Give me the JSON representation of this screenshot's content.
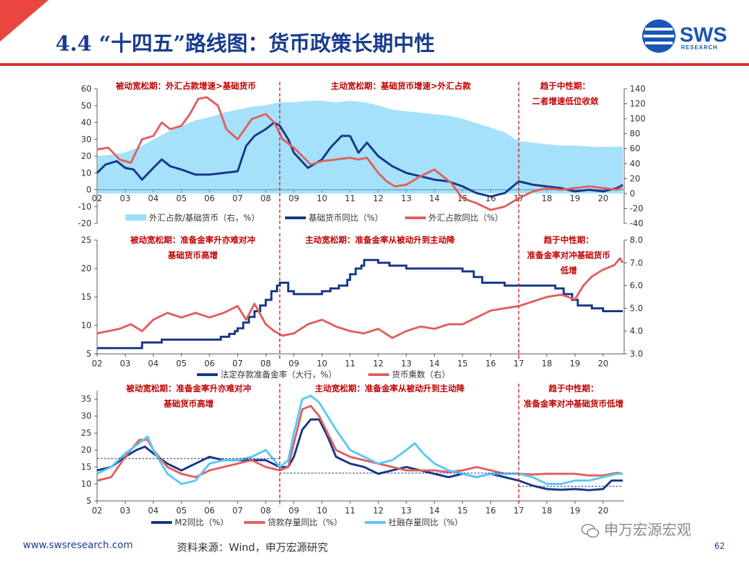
{
  "title": "4.4 “十四五”路线图：货币政策长期中性",
  "logo": {
    "text": "SWS",
    "subtitle": "RESEARCH"
  },
  "footer": {
    "url": "www.swsresearch.com",
    "source": "资料来源：Wind，申万宏源研究",
    "page": "62"
  },
  "watermark": "申万宏源宏观",
  "colors": {
    "navy": "#14368a",
    "red": "#e0605e",
    "lightblue": "#5bc8f5",
    "annotation": "#c00000",
    "divider": "#d01010",
    "title": "#1a3c8f"
  },
  "chart_data": [
    {
      "type": "line",
      "x_ticks": [
        "02",
        "03",
        "04",
        "05",
        "06",
        "07",
        "08",
        "09",
        "10",
        "11",
        "12",
        "13",
        "14",
        "15",
        "16",
        "17",
        "18",
        "19",
        "20"
      ],
      "y_left": {
        "range": [
          -20,
          60
        ],
        "ticks": [
          "60",
          "50",
          "40",
          "30",
          "20",
          "10",
          "0",
          "-10",
          "-20"
        ]
      },
      "y_right": {
        "range": [
          -40,
          140
        ],
        "ticks": [
          "140",
          "120",
          "100",
          "80",
          "60",
          "40",
          "20",
          "0",
          "-20",
          "-40"
        ]
      },
      "annotations": [
        {
          "text": "被动宽松期：外汇占款增速>基础货币"
        },
        {
          "text": "主动宽松期：基础货币增速>外汇占款"
        },
        {
          "text": "趋于中性期：",
          "line2": "二者增速低位收敛"
        }
      ],
      "dividers": [
        2008.5,
        2017.0
      ],
      "series": [
        {
          "name": "外汇占款/基础货币（右，%）",
          "axis": "right",
          "style": "area",
          "x": [
            2002.0,
            2002.5,
            2003.0,
            2003.5,
            2004.0,
            2004.5,
            2005.0,
            2005.5,
            2006.0,
            2006.5,
            2007.0,
            2007.5,
            2008.0,
            2008.5,
            2009.0,
            2009.5,
            2010.0,
            2010.5,
            2011.0,
            2011.5,
            2012.0,
            2012.5,
            2013.0,
            2013.5,
            2014.0,
            2014.5,
            2015.0,
            2015.5,
            2016.0,
            2016.5,
            2017.0,
            2017.5,
            2018.0,
            2018.5,
            2019.0,
            2019.5,
            2020.0,
            2020.7
          ],
          "y": [
            50,
            52,
            55,
            62,
            72,
            82,
            90,
            98,
            102,
            108,
            112,
            116,
            118,
            122,
            122,
            124,
            124,
            122,
            124,
            122,
            118,
            112,
            110,
            108,
            106,
            104,
            100,
            94,
            88,
            82,
            70,
            68,
            66,
            64,
            64,
            63,
            62,
            63
          ]
        },
        {
          "name": "基础货币同比（%）",
          "axis": "left",
          "style": "line",
          "x": [
            2002.0,
            2002.3,
            2002.7,
            2003.0,
            2003.3,
            2003.6,
            2004.0,
            2004.3,
            2004.6,
            2005.0,
            2005.5,
            2006.0,
            2006.5,
            2007.0,
            2007.3,
            2007.6,
            2008.0,
            2008.3,
            2008.5,
            2008.8,
            2009.0,
            2009.5,
            2010.0,
            2010.3,
            2010.7,
            2011.0,
            2011.3,
            2011.6,
            2012.0,
            2012.5,
            2013.0,
            2013.5,
            2014.0,
            2014.5,
            2015.0,
            2015.5,
            2016.0,
            2016.5,
            2017.0,
            2017.5,
            2018.0,
            2018.5,
            2019.0,
            2019.5,
            2020.0,
            2020.5,
            2020.7
          ],
          "y": [
            10,
            15,
            17,
            13,
            12,
            6,
            13,
            18,
            14,
            12,
            9,
            9,
            10,
            11,
            26,
            32,
            36,
            40,
            38,
            30,
            22,
            13,
            18,
            25,
            32,
            32,
            22,
            28,
            20,
            14,
            10,
            8,
            6,
            5,
            2,
            -2,
            -4,
            -2,
            5,
            3,
            2,
            1,
            -1,
            0,
            -1,
            1,
            3
          ]
        },
        {
          "name": "外汇占款同比（%）",
          "axis": "left",
          "style": "line",
          "x": [
            2002.0,
            2002.4,
            2002.8,
            2003.2,
            2003.6,
            2004.0,
            2004.3,
            2004.6,
            2005.0,
            2005.3,
            2005.6,
            2005.9,
            2006.3,
            2006.6,
            2007.0,
            2007.5,
            2008.0,
            2008.3,
            2008.6,
            2009.0,
            2009.3,
            2009.6,
            2010.0,
            2010.5,
            2011.0,
            2011.3,
            2011.6,
            2012.0,
            2012.3,
            2012.6,
            2013.0,
            2013.5,
            2014.0,
            2014.3,
            2014.6,
            2015.0,
            2015.5,
            2016.0,
            2016.5,
            2017.0,
            2017.5,
            2018.0,
            2018.5,
            2019.0,
            2019.5,
            2020.0,
            2020.5,
            2020.7
          ],
          "y": [
            24,
            25,
            18,
            16,
            30,
            32,
            40,
            36,
            38,
            45,
            54,
            55,
            50,
            36,
            30,
            42,
            45,
            40,
            30,
            25,
            20,
            15,
            17,
            18,
            19,
            18,
            19,
            10,
            5,
            2,
            3,
            8,
            12,
            8,
            4,
            -5,
            -8,
            -12,
            -10,
            -5,
            -1,
            1,
            0,
            1,
            2,
            1,
            0,
            2
          ]
        }
      ]
    },
    {
      "type": "line",
      "x_ticks": [
        "02",
        "03",
        "04",
        "05",
        "06",
        "07",
        "08",
        "09",
        "10",
        "11",
        "12",
        "13",
        "14",
        "15",
        "16",
        "17",
        "18",
        "19",
        "20"
      ],
      "y_left": {
        "range": [
          5,
          25
        ],
        "ticks": [
          "25",
          "20",
          "15",
          "10",
          "5"
        ]
      },
      "y_right": {
        "range": [
          3.0,
          8.0
        ],
        "ticks": [
          "8.0",
          "7.0",
          "6.0",
          "5.0",
          "4.0",
          "3.0"
        ]
      },
      "annotations": [
        {
          "text": "被动宽松期：准备金率升亦难对冲",
          "line2": "基础货币高增"
        },
        {
          "text": "主动宽松期：准备金率从被动升到主动降"
        },
        {
          "text": "趋于中性期：",
          "line2": "准备金率对冲基础货币",
          "line3": "低增"
        }
      ],
      "dividers": [
        2008.5,
        2017.0
      ],
      "series": [
        {
          "name": "法定存款准备金率（大行，%）",
          "axis": "left",
          "style": "step",
          "x": [
            2002.0,
            2003.6,
            2004.3,
            2006.4,
            2006.7,
            2006.9,
            2007.0,
            2007.2,
            2007.4,
            2007.6,
            2007.8,
            2008.0,
            2008.2,
            2008.4,
            2008.5,
            2008.8,
            2009.0,
            2009.5,
            2010.0,
            2010.3,
            2010.6,
            2010.9,
            2011.0,
            2011.2,
            2011.4,
            2011.5,
            2012.0,
            2012.4,
            2013.0,
            2014.0,
            2015.0,
            2015.4,
            2015.7,
            2016.0,
            2016.5,
            2017.0,
            2018.0,
            2018.3,
            2018.6,
            2018.9,
            2019.1,
            2019.6,
            2020.0,
            2020.7
          ],
          "y": [
            6,
            7,
            7.5,
            8,
            8.5,
            9,
            9.5,
            10.5,
            11.5,
            12.5,
            13.5,
            14.5,
            16,
            17,
            17.5,
            16,
            15.5,
            15.5,
            16,
            16.5,
            17,
            18,
            19,
            20,
            20.5,
            21.5,
            21,
            20.5,
            20,
            20,
            19.5,
            18.5,
            17.5,
            17.5,
            17,
            17,
            17,
            16.5,
            15.5,
            14.5,
            13.5,
            13,
            12.5,
            12.5
          ]
        },
        {
          "name": "货币乘数（右）",
          "axis": "right",
          "style": "line",
          "x": [
            2002.0,
            2002.4,
            2002.8,
            2003.2,
            2003.6,
            2004.0,
            2004.5,
            2005.0,
            2005.5,
            2006.0,
            2006.5,
            2007.0,
            2007.3,
            2007.6,
            2008.0,
            2008.3,
            2008.6,
            2009.0,
            2009.5,
            2010.0,
            2010.5,
            2011.0,
            2011.5,
            2012.0,
            2012.5,
            2013.0,
            2013.5,
            2014.0,
            2014.5,
            2015.0,
            2015.5,
            2016.0,
            2016.5,
            2017.0,
            2017.5,
            2018.0,
            2018.5,
            2019.0,
            2019.3,
            2019.6,
            2020.0,
            2020.4,
            2020.6,
            2020.7
          ],
          "y": [
            3.9,
            4.0,
            4.1,
            4.3,
            4.0,
            4.5,
            4.8,
            4.6,
            4.8,
            4.6,
            4.8,
            5.1,
            4.5,
            5.2,
            4.3,
            4.0,
            3.8,
            3.9,
            4.3,
            4.5,
            4.2,
            4.0,
            3.9,
            4.1,
            3.7,
            4.0,
            4.2,
            4.1,
            4.3,
            4.3,
            4.6,
            4.9,
            5.0,
            5.1,
            5.3,
            5.5,
            5.6,
            5.4,
            6.0,
            6.4,
            6.7,
            6.9,
            7.2,
            7.0
          ]
        }
      ]
    },
    {
      "type": "line",
      "x_ticks": [
        "02",
        "03",
        "04",
        "05",
        "06",
        "07",
        "08",
        "09",
        "10",
        "11",
        "12",
        "13",
        "14",
        "15",
        "16",
        "17",
        "18",
        "19",
        "20"
      ],
      "y_left": {
        "range": [
          5,
          37.5
        ],
        "ticks": [
          "35",
          "30",
          "25",
          "20",
          "15",
          "10",
          "5"
        ]
      },
      "annotations": [
        {
          "text": "被动宽松期：准备金率升亦难对冲",
          "line2": "基础货币高增"
        },
        {
          "text": "主动宽松期：准备金率从被动升到主动降"
        },
        {
          "text": "趋于中性期：",
          "line2": "准备金率对冲基础货币低增"
        }
      ],
      "dividers": [
        2008.5,
        2017.0
      ],
      "reference_lines": [
        {
          "y": 17.5,
          "x_start": 2002.0,
          "x_end": 2008.5
        },
        {
          "y": 13.2,
          "x_start": 2008.5,
          "x_end": 2017.0
        },
        {
          "y": 9.3,
          "x_start": 2017.0,
          "x_end": 2020.7
        }
      ],
      "series": [
        {
          "name": "M2同比（%）",
          "style": "line",
          "x": [
            2002.0,
            2002.5,
            2003.0,
            2003.4,
            2003.7,
            2004.0,
            2004.5,
            2005.0,
            2005.5,
            2006.0,
            2006.5,
            2007.0,
            2007.5,
            2008.0,
            2008.5,
            2008.8,
            2009.0,
            2009.3,
            2009.6,
            2009.9,
            2010.2,
            2010.5,
            2011.0,
            2011.5,
            2012.0,
            2012.5,
            2013.0,
            2013.5,
            2014.0,
            2014.5,
            2015.0,
            2015.5,
            2016.0,
            2016.5,
            2017.0,
            2017.5,
            2018.0,
            2018.5,
            2019.0,
            2019.5,
            2020.0,
            2020.3,
            2020.7
          ],
          "y": [
            14,
            15,
            18,
            20,
            21,
            19,
            16,
            14,
            16,
            18,
            17,
            17,
            17,
            17,
            15,
            15,
            18,
            26,
            29,
            29,
            24,
            18,
            16,
            15,
            13,
            14,
            15,
            14,
            13,
            12,
            13,
            12,
            13,
            12,
            11,
            9.5,
            8.5,
            8.3,
            8.5,
            8.2,
            8.5,
            11,
            11
          ]
        },
        {
          "name": "贷款存量同比（%）",
          "style": "line",
          "x": [
            2002.0,
            2002.5,
            2003.0,
            2003.5,
            2003.8,
            2004.0,
            2004.5,
            2005.0,
            2005.5,
            2006.0,
            2006.5,
            2007.0,
            2007.5,
            2008.0,
            2008.5,
            2008.8,
            2009.0,
            2009.3,
            2009.6,
            2009.9,
            2010.2,
            2010.5,
            2011.0,
            2011.5,
            2012.0,
            2012.5,
            2013.0,
            2013.5,
            2014.0,
            2014.5,
            2015.0,
            2015.5,
            2016.0,
            2016.5,
            2017.0,
            2017.5,
            2018.0,
            2018.5,
            2019.0,
            2019.5,
            2020.0,
            2020.5,
            2020.7
          ],
          "y": [
            11,
            12,
            18,
            23,
            23,
            20,
            15,
            13,
            12,
            14,
            15,
            16,
            17,
            15,
            14,
            15,
            22,
            32,
            33,
            30,
            25,
            20,
            18,
            17,
            16,
            15,
            14,
            14,
            14,
            13.5,
            14,
            15,
            14,
            13,
            13,
            12.8,
            13,
            13,
            13,
            12.5,
            12.5,
            13.3,
            13
          ]
        },
        {
          "name": "社融存量同比（%）",
          "style": "line",
          "x": [
            2002.0,
            2002.5,
            2003.0,
            2003.5,
            2003.8,
            2004.0,
            2004.5,
            2005.0,
            2005.5,
            2006.0,
            2006.5,
            2007.0,
            2007.5,
            2008.0,
            2008.5,
            2008.8,
            2009.0,
            2009.3,
            2009.6,
            2009.9,
            2010.2,
            2010.5,
            2011.0,
            2011.5,
            2012.0,
            2012.5,
            2013.0,
            2013.3,
            2013.6,
            2014.0,
            2014.5,
            2015.0,
            2015.5,
            2016.0,
            2016.5,
            2017.0,
            2017.5,
            2018.0,
            2018.5,
            2019.0,
            2019.5,
            2020.0,
            2020.5,
            2020.7
          ],
          "y": [
            13,
            15,
            19,
            22,
            24,
            20,
            13,
            10,
            11,
            16,
            17,
            17,
            18,
            20,
            15,
            17,
            25,
            35,
            36,
            34,
            30,
            26,
            20,
            18,
            16,
            17,
            20,
            22,
            19,
            16,
            14,
            13,
            12,
            13,
            13,
            13,
            12,
            10,
            10,
            11,
            11,
            12,
            13,
            13
          ]
        }
      ]
    }
  ]
}
